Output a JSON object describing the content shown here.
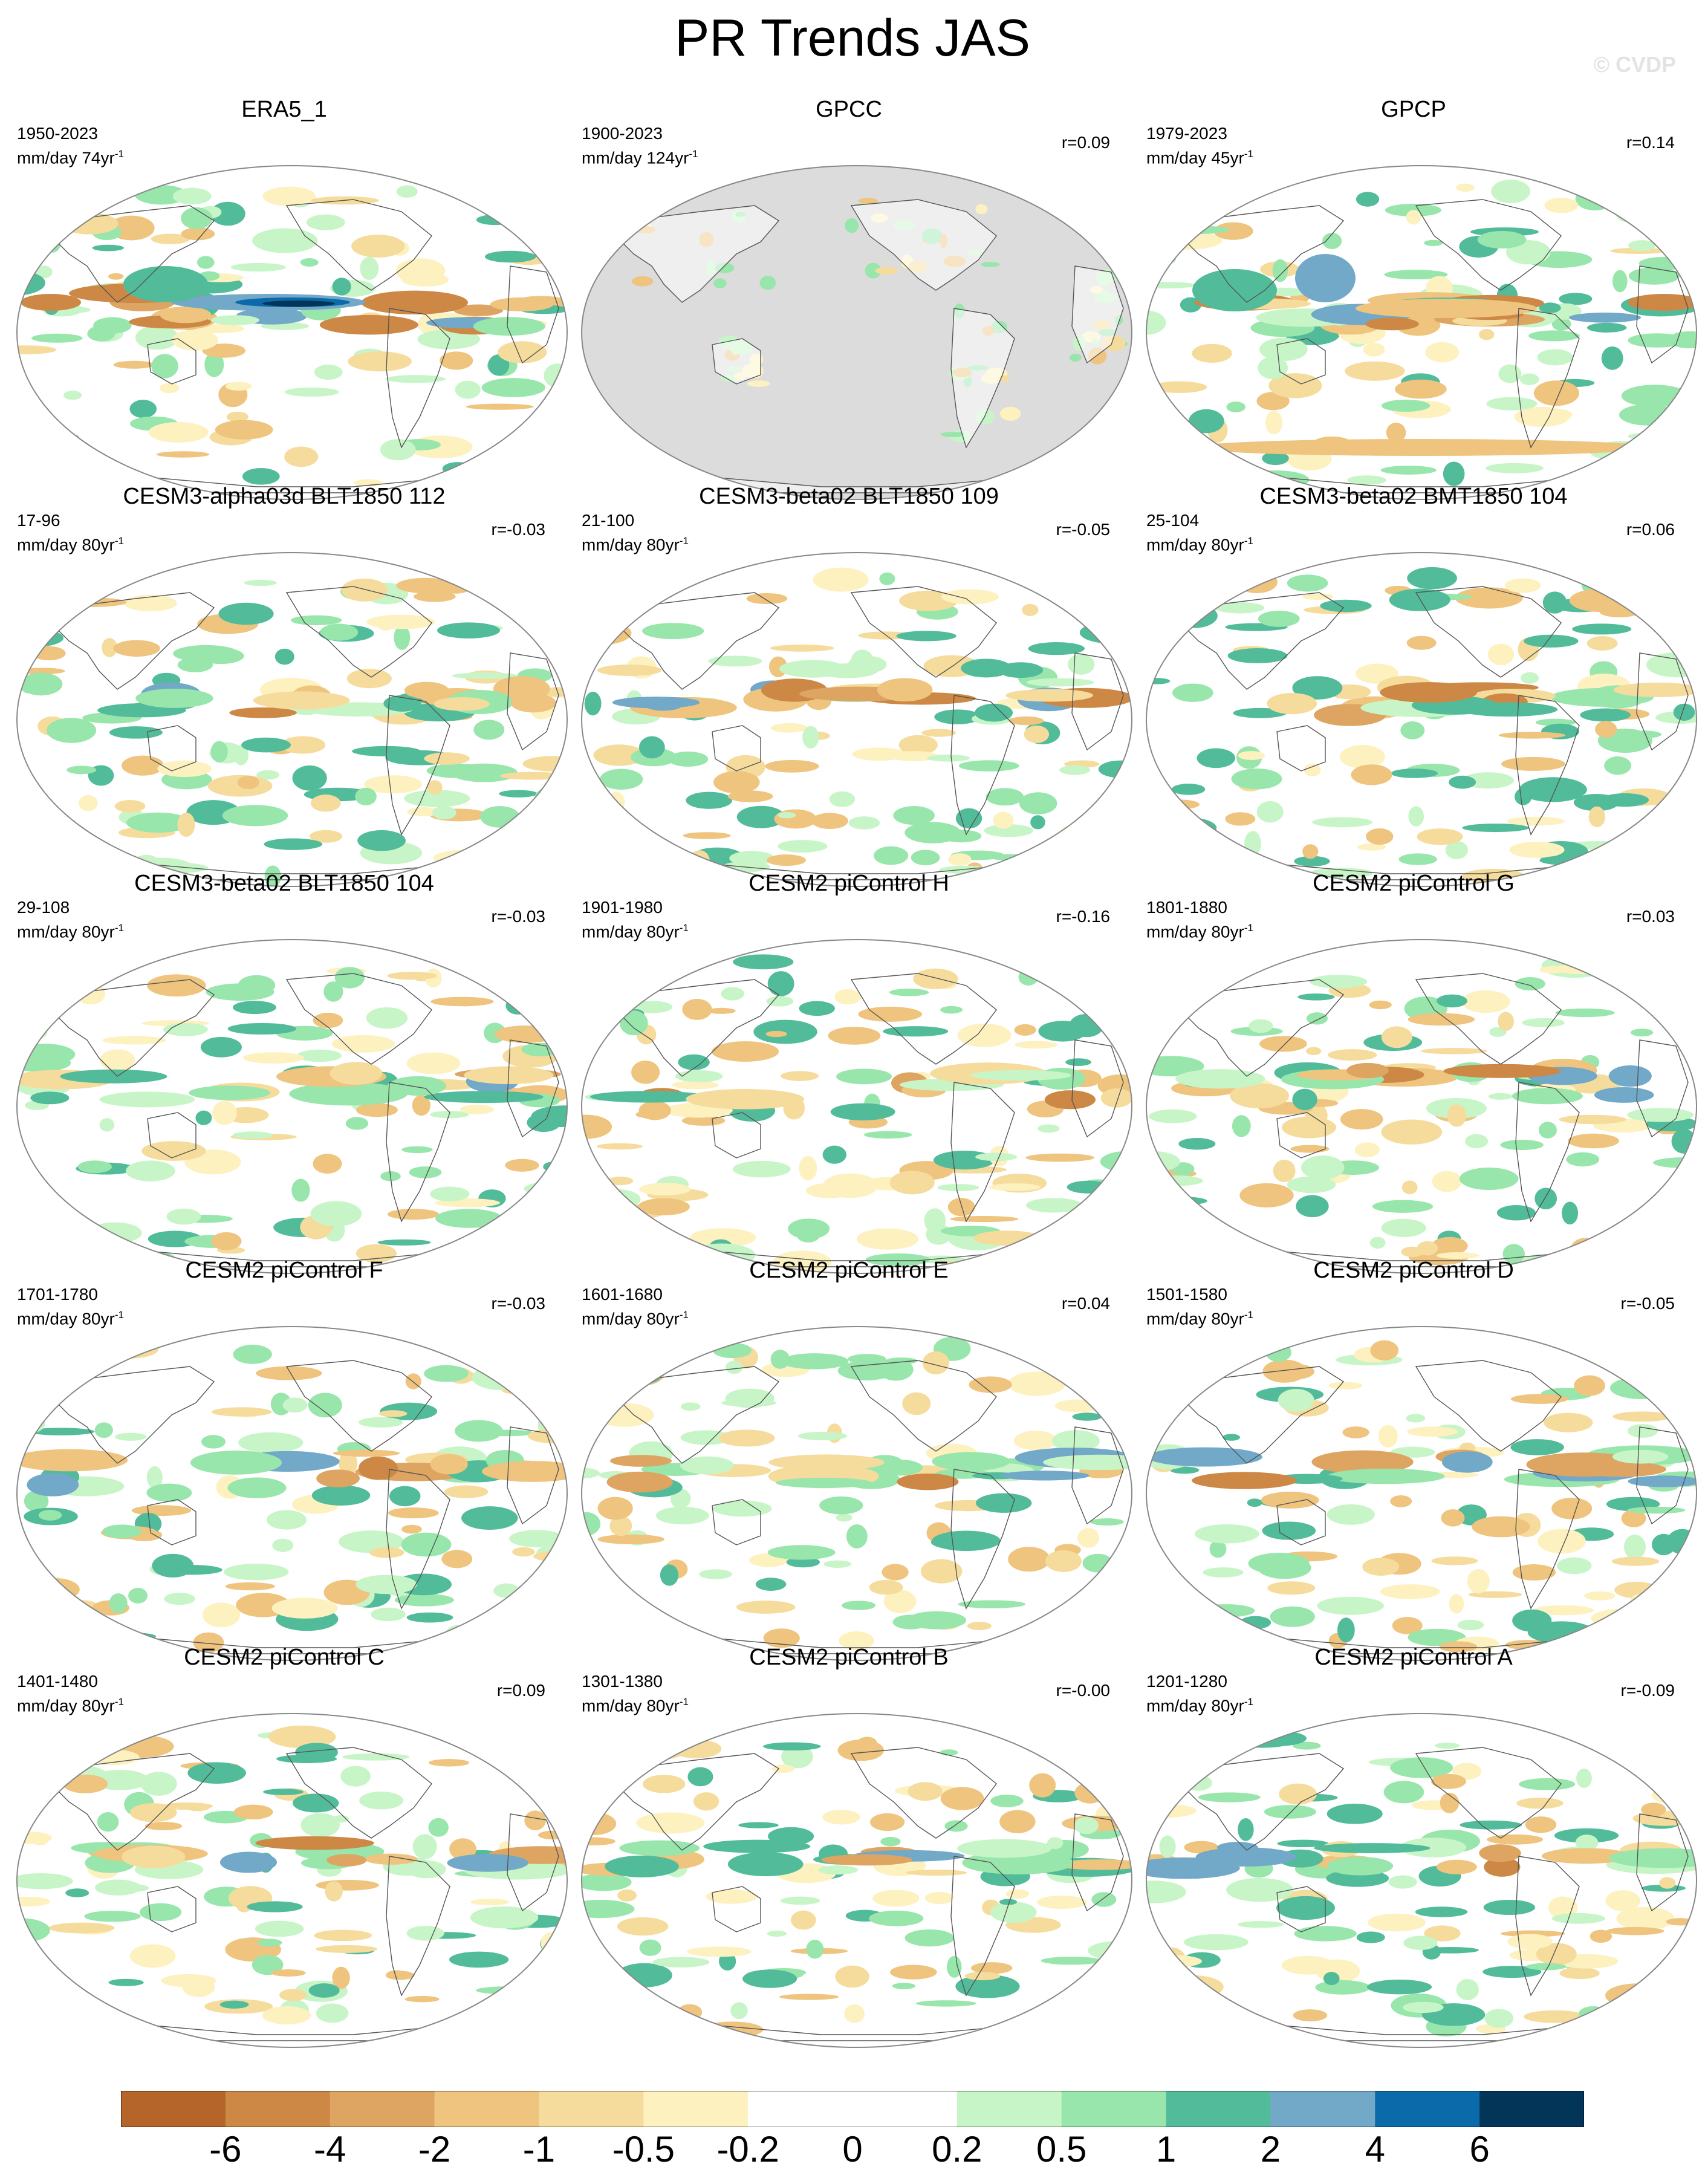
{
  "title": "PR Trends JAS",
  "watermark": "© CVDP",
  "panels": [
    {
      "title": "ERA5_1",
      "years": "1950-2023",
      "units": "mm/day 74yr",
      "r": "",
      "gray_ocean": false,
      "pattern": "obs"
    },
    {
      "title": "GPCC",
      "years": "1900-2023",
      "units": "mm/day 124yr",
      "r": "r=0.09",
      "gray_ocean": true,
      "pattern": "land"
    },
    {
      "title": "GPCP",
      "years": "1979-2023",
      "units": "mm/day 45yr",
      "r": "r=0.14",
      "gray_ocean": false,
      "pattern": "gpcp"
    },
    {
      "title": "CESM3-alpha03d BLT1850 112",
      "years": "17-96",
      "units": "mm/day 80yr",
      "r": "r=-0.03",
      "gray_ocean": false,
      "pattern": "model"
    },
    {
      "title": "CESM3-beta02 BLT1850 109",
      "years": "21-100",
      "units": "mm/day 80yr",
      "r": "r=-0.05",
      "gray_ocean": false,
      "pattern": "model"
    },
    {
      "title": "CESM3-beta02 BMT1850 104",
      "years": "25-104",
      "units": "mm/day 80yr",
      "r": "r=0.06",
      "gray_ocean": false,
      "pattern": "model"
    },
    {
      "title": "CESM3-beta02 BLT1850 104",
      "years": "29-108",
      "units": "mm/day 80yr",
      "r": "r=-0.03",
      "gray_ocean": false,
      "pattern": "model"
    },
    {
      "title": "CESM2 piControl H",
      "years": "1901-1980",
      "units": "mm/day 80yr",
      "r": "r=-0.16",
      "gray_ocean": false,
      "pattern": "model"
    },
    {
      "title": "CESM2 piControl G",
      "years": "1801-1880",
      "units": "mm/day 80yr",
      "r": "r=0.03",
      "gray_ocean": false,
      "pattern": "model"
    },
    {
      "title": "CESM2 piControl F",
      "years": "1701-1780",
      "units": "mm/day 80yr",
      "r": "r=-0.03",
      "gray_ocean": false,
      "pattern": "model"
    },
    {
      "title": "CESM2 piControl E",
      "years": "1601-1680",
      "units": "mm/day 80yr",
      "r": "r=0.04",
      "gray_ocean": false,
      "pattern": "model"
    },
    {
      "title": "CESM2 piControl D",
      "years": "1501-1580",
      "units": "mm/day 80yr",
      "r": "r=-0.05",
      "gray_ocean": false,
      "pattern": "model"
    },
    {
      "title": "CESM2 piControl C",
      "years": "1401-1480",
      "units": "mm/day 80yr",
      "r": "r=0.09",
      "gray_ocean": false,
      "pattern": "model"
    },
    {
      "title": "CESM2 piControl B",
      "years": "1301-1380",
      "units": "mm/day 80yr",
      "r": "r=-0.00",
      "gray_ocean": false,
      "pattern": "model"
    },
    {
      "title": "CESM2 piControl A",
      "years": "1201-1280",
      "units": "mm/day 80yr",
      "r": "r=-0.09",
      "gray_ocean": false,
      "pattern": "model"
    }
  ],
  "unit_superscript": "-1",
  "colorbar": {
    "colors": [
      "#b5652a",
      "#cc8844",
      "#dea462",
      "#eec47e",
      "#f6dc9c",
      "#fdf1c0",
      "#ffffff",
      "#ffffff",
      "#c8f5c8",
      "#98e6ac",
      "#52bc9a",
      "#72a8c8",
      "#0a6aaa",
      "#033558"
    ],
    "labels": [
      "-6",
      "-4",
      "-2",
      "-1",
      "-0.5",
      "-0.2",
      "0",
      "0.2",
      "0.5",
      "1",
      "2",
      "4",
      "6"
    ]
  }
}
